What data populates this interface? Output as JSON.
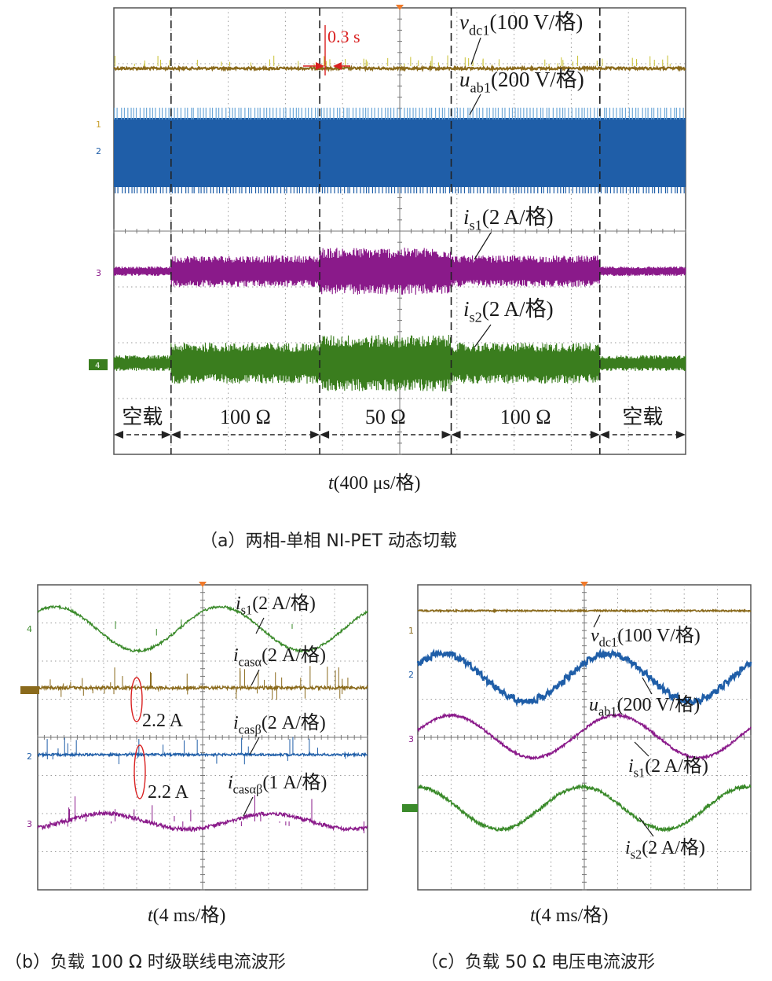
{
  "chart_data": [
    {
      "id": "a",
      "type": "line",
      "caption": "（a）两相-单相 NI-PET 动态切载",
      "xlabel": "t(400 μs/格)",
      "grid": true,
      "timebase_divisions": 10,
      "series": [
        {
          "name": "v_dc1(100 V/格)",
          "sym": "v",
          "sub": "dc1",
          "unit": "(100 V/格)",
          "channel": "",
          "color": "#8a6a1c"
        },
        {
          "name": "u_ab1(200 V/格)",
          "sym": "u",
          "sub": "ab1",
          "unit": "(200 V/格)",
          "channel": "1 2",
          "color": "#1f5ea8"
        },
        {
          "name": "i_s1(2 A/格)",
          "sym": "i",
          "sub": "s1",
          "unit": "(2 A/格)",
          "channel": "3",
          "color": "#8a1a8a"
        },
        {
          "name": "i_s2(2 A/格)",
          "sym": "i",
          "sub": "s2",
          "unit": "(2 A/格)",
          "channel": "4",
          "color": "#3a7d1e"
        }
      ],
      "segments": [
        {
          "label": "空载",
          "start": 0.0,
          "end": 1.0
        },
        {
          "label": "100 Ω",
          "start": 1.0,
          "end": 3.6
        },
        {
          "label": "50 Ω",
          "start": 3.6,
          "end": 5.9
        },
        {
          "label": "100 Ω",
          "start": 5.9,
          "end": 8.5
        },
        {
          "label": "空载",
          "start": 8.5,
          "end": 10.0
        }
      ],
      "annotation": {
        "text": "0.3 s",
        "color": "#d92020"
      }
    },
    {
      "id": "b",
      "type": "line",
      "caption": "（b）负载 100 Ω 时级联线电流波形",
      "xlabel": "t(4 ms/格)",
      "grid": true,
      "timebase_divisions": 10,
      "series": [
        {
          "name": "i_s1(2 A/格)",
          "sym": "i",
          "sub": "s1",
          "unit": "(2 A/格)",
          "channel": "4",
          "color": "#3a8a2a"
        },
        {
          "name": "i_casα(2 A/格)",
          "sym": "i",
          "sub": "casα",
          "unit": "(2 A/格)",
          "channel": "1",
          "color": "#8a6a1c"
        },
        {
          "name": "i_casβ(2 A/格)",
          "sym": "i",
          "sub": "casβ",
          "unit": "(2 A/格)",
          "channel": "2",
          "color": "#1f5ea8"
        },
        {
          "name": "i_casαβ(1 A/格)",
          "sym": "i",
          "sub": "casαβ",
          "unit": "(1 A/格)",
          "channel": "3",
          "color": "#8a1a8a"
        }
      ],
      "annotations": [
        {
          "text": "2.2 A",
          "color": "#d92020"
        },
        {
          "text": "2.2 A",
          "color": "#d92020"
        }
      ]
    },
    {
      "id": "c",
      "type": "line",
      "caption": "（c）负载 50 Ω 电压电流波形",
      "xlabel": "t(4 ms/格)",
      "grid": true,
      "timebase_divisions": 10,
      "series": [
        {
          "name": "v_dc1(100 V/格)",
          "sym": "v",
          "sub": "dc1",
          "unit": "(100 V/格)",
          "channel": "1",
          "color": "#8a6a1c"
        },
        {
          "name": "u_ab1(200 V/格)",
          "sym": "u",
          "sub": "ab1",
          "unit": "(200 V/格)",
          "channel": "2",
          "color": "#1f5ea8"
        },
        {
          "name": "i_s1(2 A/格)",
          "sym": "i",
          "sub": "s1",
          "unit": "(2 A/格)",
          "channel": "3",
          "color": "#8a1a8a"
        },
        {
          "name": "i_s2(2 A/格)",
          "sym": "i",
          "sub": "s2",
          "unit": "(2 A/格)",
          "channel": "4",
          "color": "#3a8a2a"
        }
      ]
    }
  ]
}
